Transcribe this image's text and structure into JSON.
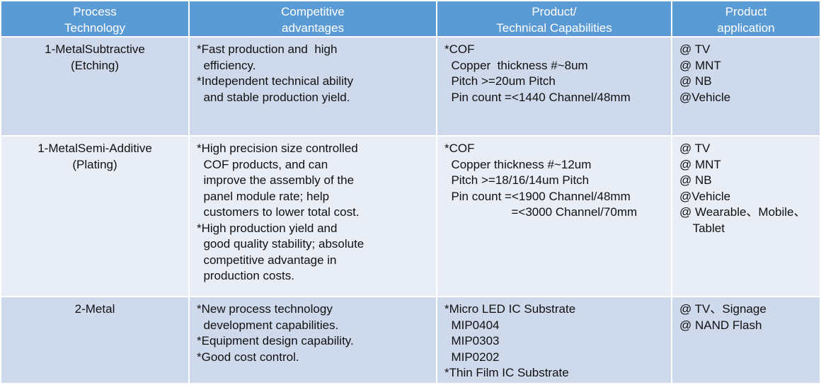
{
  "headers": [
    [
      "Process",
      "Technology"
    ],
    [
      "Competitive",
      "advantages"
    ],
    [
      "Product/",
      "Technical Capabilities"
    ],
    [
      "Product",
      "application"
    ]
  ],
  "rows": [
    {
      "process": [
        "1-MetalSubtractive",
        "(Etching)"
      ],
      "advantages": [
        "*Fast production and  high",
        "  efficiency.",
        "*Independent technical ability",
        "  and stable production yield."
      ],
      "capabilities": [
        "*COF",
        "  Copper  thickness #~8um",
        "  Pitch >=20um Pitch",
        "  Pin count =<1440 Channel/48mm"
      ],
      "applications": [
        "@ TV",
        "@ MNT",
        "@ NB",
        "@Vehicle"
      ]
    },
    {
      "process": [
        "1-MetalSemi-Additive",
        "(Plating)"
      ],
      "advantages": [
        "*High precision size controlled",
        "  COF products, and can",
        "  improve the assembly of the",
        "  panel module rate; help",
        "  customers to lower total cost.",
        "*High production yield and",
        "  good quality stability; absolute",
        "  competitive advantage in",
        "  production costs."
      ],
      "capabilities": [
        "*COF",
        "  Copper thickness #~12um",
        "  Pitch >=18/16/14um Pitch",
        "  Pin count =<1900 Channel/48mm",
        "                    =<3000 Channel/70mm"
      ],
      "applications": [
        "@ TV",
        "@ MNT",
        "@ NB",
        "@Vehicle",
        "@ Wearable、Mobile、",
        "    Tablet"
      ]
    },
    {
      "process": [
        "2-Metal"
      ],
      "advantages": [
        "*New process technology",
        "  development capabilities.",
        "*Equipment design capability.",
        "*Good cost control."
      ],
      "capabilities": [
        "*Micro LED IC Substrate",
        "  MIP0404",
        "  MIP0303",
        "  MIP0202",
        "*Thin Film IC Substrate"
      ],
      "applications": [
        "@ TV、Signage",
        "@ NAND Flash"
      ]
    }
  ]
}
